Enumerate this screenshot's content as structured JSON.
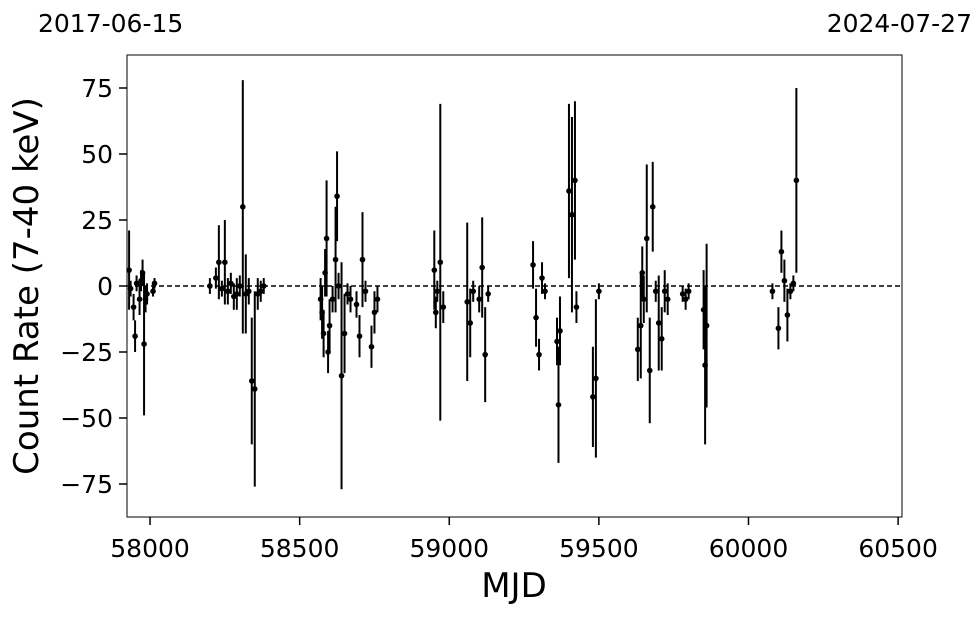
{
  "chart_data": {
    "type": "scatter",
    "xlabel": "MJD",
    "ylabel": "Count Rate (7-40 keV)",
    "top_axis_labels": [
      "2017-06-15",
      "2024-07-27"
    ],
    "color": "#000000",
    "hline": 0,
    "xlim": [
      57923,
      60513
    ],
    "ylim": [
      -87.5,
      87.5
    ],
    "xticks": [
      58000,
      58500,
      59000,
      59500,
      60000,
      60500
    ],
    "yticks": [
      {
        "value": -75,
        "label": "−75"
      },
      {
        "value": -50,
        "label": "−50"
      },
      {
        "value": -25,
        "label": "−25"
      },
      0,
      25,
      50,
      75
    ],
    "x": [
      57930,
      57935,
      57945,
      57950,
      57955,
      57965,
      57970,
      57975,
      57980,
      57985,
      57990,
      58010,
      58015,
      58200,
      58220,
      58230,
      58240,
      58250,
      58260,
      58270,
      58280,
      58290,
      58300,
      58310,
      58320,
      58330,
      58340,
      58350,
      58360,
      58370,
      58380,
      58570,
      58575,
      58580,
      58585,
      58590,
      58595,
      58600,
      58610,
      58620,
      58625,
      58630,
      58640,
      58650,
      58660,
      58670,
      58690,
      58700,
      58710,
      58720,
      58740,
      58750,
      58760,
      58950,
      58955,
      58960,
      58970,
      58980,
      59060,
      59070,
      59080,
      59100,
      59110,
      59120,
      59130,
      59280,
      59290,
      59300,
      59310,
      59320,
      59360,
      59365,
      59370,
      59400,
      59410,
      59420,
      59425,
      59480,
      59490,
      59500,
      59630,
      59640,
      59645,
      59650,
      59660,
      59670,
      59680,
      59690,
      59700,
      59710,
      59720,
      59730,
      59780,
      59790,
      59800,
      59850,
      59855,
      59860,
      60080,
      60100,
      60110,
      60120,
      60130,
      60140,
      60150,
      60160
    ],
    "values": [
      6,
      -1,
      -8,
      -19,
      1,
      -5,
      2,
      5,
      -22,
      -5,
      -3,
      -2,
      1,
      0,
      3,
      9,
      -1,
      9,
      -2,
      1,
      -4,
      -3,
      0,
      30,
      -3,
      -2,
      -36,
      -39,
      -3,
      -2,
      0,
      -5,
      -10,
      -18,
      5,
      18,
      -25,
      -15,
      -5,
      10,
      34,
      0,
      -34,
      -18,
      -3,
      -5,
      -7,
      -19,
      10,
      -2,
      -23,
      -10,
      -5,
      6,
      -10,
      -2,
      9,
      -8,
      -6,
      -14,
      -2,
      -5,
      7,
      -26,
      -3,
      8,
      -12,
      -26,
      3,
      -2,
      -21,
      -45,
      -17,
      36,
      27,
      40,
      -8,
      -42,
      -35,
      -2,
      -24,
      -15,
      5,
      -5,
      18,
      -32,
      30,
      -2,
      -14,
      -20,
      -2,
      -5,
      -3,
      -5,
      -2,
      -9,
      -30,
      -15,
      -2,
      -16,
      13,
      2,
      -11,
      -2,
      1,
      40
    ],
    "errors": [
      15,
      3,
      5,
      6,
      3,
      6,
      4,
      5,
      27,
      5,
      4,
      2,
      2,
      3,
      4,
      14,
      3,
      16,
      5,
      4,
      5,
      6,
      4,
      48,
      15,
      5,
      24,
      37,
      6,
      4,
      3,
      8,
      10,
      9,
      9,
      22,
      8,
      10,
      5,
      20,
      17,
      5,
      43,
      15,
      4,
      5,
      5,
      8,
      18,
      4,
      8,
      8,
      5,
      15,
      6,
      4,
      60,
      6,
      30,
      13,
      4,
      5,
      19,
      18,
      3,
      9,
      11,
      6,
      6,
      3,
      9,
      22,
      13,
      33,
      37,
      30,
      6,
      19,
      30,
      3,
      12,
      20,
      10,
      9,
      28,
      20,
      17,
      4,
      18,
      12,
      8,
      6,
      3,
      4,
      3,
      15,
      30,
      31,
      3,
      8,
      8,
      8,
      10,
      3,
      3,
      35
    ]
  }
}
